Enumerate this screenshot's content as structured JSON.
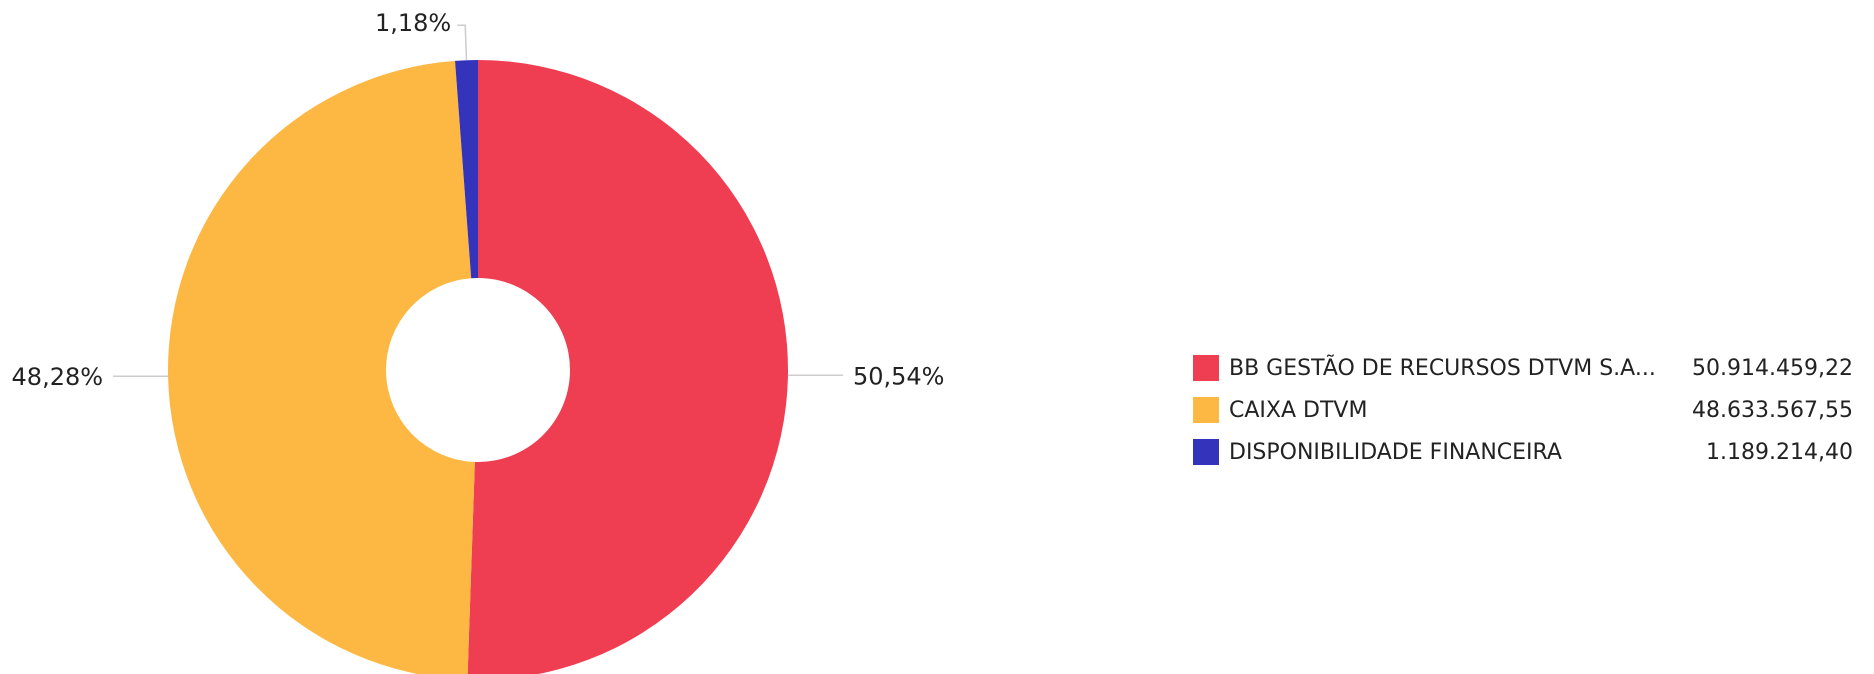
{
  "chart_data": {
    "type": "pie",
    "subtype": "donut",
    "slices": [
      {
        "name": "BB GESTÃO DE RECURSOS DTVM S.A...",
        "value": 50914459.22,
        "value_label": "50.914.459,22",
        "percent": 50.54,
        "percent_label": "50,54%",
        "color": "#EF3E52"
      },
      {
        "name": "CAIXA DTVM",
        "value": 48633567.55,
        "value_label": "48.633.567,55",
        "percent": 48.28,
        "percent_label": "48,28%",
        "color": "#FDB843"
      },
      {
        "name": "DISPONIBILIDADE FINANCEIRA",
        "value": 1189214.4,
        "value_label": "1.189.214,40",
        "percent": 1.18,
        "percent_label": "1,18%",
        "color": "#3333BB"
      }
    ],
    "legend_position": "right"
  }
}
